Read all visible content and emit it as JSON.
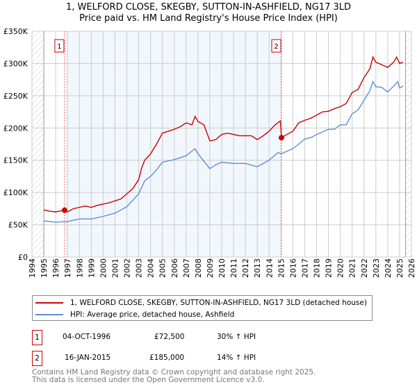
{
  "chart_data": {
    "type": "line",
    "title": "1, WELFORD CLOSE, SKEGBY, SUTTON-IN-ASHFIELD, NG17 3LD",
    "subtitle": "Price paid vs. HM Land Registry's House Price Index (HPI)",
    "xlim": [
      1994,
      2026
    ],
    "ylim": [
      0,
      350000
    ],
    "xticks": [
      "1994",
      "1995",
      "1996",
      "1997",
      "1998",
      "1999",
      "2000",
      "2001",
      "2002",
      "2003",
      "2004",
      "2005",
      "2006",
      "2007",
      "2008",
      "2009",
      "2010",
      "2011",
      "2012",
      "2013",
      "2014",
      "2015",
      "2016",
      "2017",
      "2018",
      "2019",
      "2020",
      "2021",
      "2022",
      "2023",
      "2024",
      "2025",
      "2026"
    ],
    "yticks": [
      {
        "v": 0,
        "l": "£0"
      },
      {
        "v": 50000,
        "l": "£50K"
      },
      {
        "v": 100000,
        "l": "£100K"
      },
      {
        "v": 150000,
        "l": "£150K"
      },
      {
        "v": 200000,
        "l": "£200K"
      },
      {
        "v": 250000,
        "l": "£250K"
      },
      {
        "v": 300000,
        "l": "£300K"
      },
      {
        "v": 350000,
        "l": "£350K"
      }
    ],
    "grid": true,
    "series": [
      {
        "name": "1, WELFORD CLOSE, SKEGBY, SUTTON-IN-ASHFIELD, NG17 3LD (detached house)",
        "color": "#cc0000",
        "x": [
          1995,
          1995.5,
          1996,
          1996.75,
          1997,
          1997.5,
          1998,
          1998.5,
          1999,
          1999.5,
          2000,
          2000.5,
          2001,
          2001.5,
          2002,
          2002.5,
          2003,
          2003.25,
          2003.5,
          2004,
          2004.5,
          2005,
          2005.5,
          2006,
          2006.5,
          2007,
          2007.5,
          2007.75,
          2008,
          2008.5,
          2009,
          2009.5,
          2010,
          2010.5,
          2011,
          2011.5,
          2012,
          2012.5,
          2013,
          2013.5,
          2014,
          2014.5,
          2014.95,
          2015.04,
          2015.5,
          2016,
          2016.5,
          2017,
          2017.5,
          2018,
          2018.5,
          2019,
          2019.5,
          2020,
          2020.5,
          2021,
          2021.5,
          2022,
          2022.5,
          2022.75,
          2023,
          2023.5,
          2024,
          2024.5,
          2024.75,
          2025,
          2025.3
        ],
        "y": [
          73000,
          71000,
          70000,
          72500,
          70000,
          75000,
          77000,
          79000,
          77000,
          80000,
          82000,
          84000,
          87000,
          90000,
          98000,
          106000,
          120000,
          138000,
          150000,
          160000,
          175000,
          192000,
          195000,
          198000,
          202000,
          208000,
          205000,
          218000,
          210000,
          205000,
          180000,
          182000,
          190000,
          192000,
          190000,
          188000,
          188000,
          188000,
          182000,
          188000,
          195000,
          205000,
          211000,
          185000,
          190000,
          195000,
          208000,
          212000,
          215000,
          220000,
          225000,
          226000,
          230000,
          233000,
          238000,
          255000,
          260000,
          278000,
          292000,
          310000,
          302000,
          298000,
          294000,
          302000,
          310000,
          300000,
          302000
        ]
      },
      {
        "name": "HPI: Average price, detached house, Ashfield",
        "color": "#5b8fd4",
        "x": [
          1995,
          1996,
          1997,
          1998,
          1999,
          2000,
          2001,
          2002,
          2003,
          2003.5,
          2004,
          2004.5,
          2005,
          2006,
          2007,
          2007.75,
          2008,
          2009,
          2009.5,
          2010,
          2011,
          2012,
          2013,
          2013.5,
          2014,
          2014.75,
          2015,
          2016,
          2016.5,
          2017,
          2017.5,
          2018,
          2019,
          2019.5,
          2020,
          2020.5,
          2021,
          2021.5,
          2022,
          2022.5,
          2022.75,
          2023,
          2023.5,
          2024,
          2024.5,
          2024.85,
          2025,
          2025.3
        ],
        "y": [
          56000,
          54000,
          55000,
          59000,
          59000,
          63000,
          68000,
          78000,
          98000,
          118000,
          125000,
          135000,
          147000,
          151000,
          157000,
          168000,
          160000,
          137000,
          143000,
          147000,
          145000,
          145000,
          140000,
          145000,
          150000,
          162000,
          160000,
          168000,
          175000,
          183000,
          185000,
          190000,
          198000,
          198000,
          205000,
          205000,
          222000,
          228000,
          243000,
          258000,
          272000,
          264000,
          263000,
          256000,
          265000,
          272000,
          262000,
          265000
        ]
      }
    ],
    "annotations": [
      {
        "label": "1",
        "x": 1996.75,
        "y": 72500
      },
      {
        "label": "2",
        "x": 2015.04,
        "y": 185000
      }
    ]
  },
  "legend": {
    "items": [
      "1, WELFORD CLOSE, SKEGBY, SUTTON-IN-ASHFIELD, NG17 3LD (detached house)",
      "HPI: Average price, detached house, Ashfield"
    ]
  },
  "sales": [
    {
      "num": "1",
      "date": "04-OCT-1996",
      "price": "£72,500",
      "hpi": "30% ↑ HPI"
    },
    {
      "num": "2",
      "date": "16-JAN-2015",
      "price": "£185,000",
      "hpi": "14% ↑ HPI"
    }
  ],
  "footer": {
    "line1": "Contains HM Land Registry data © Crown copyright and database right 2025.",
    "line2": "This data is licensed under the Open Government Licence v3.0."
  }
}
